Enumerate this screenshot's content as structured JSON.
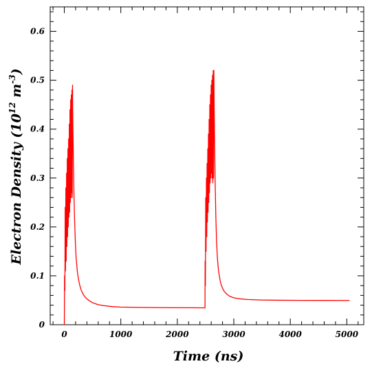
{
  "chart_data": {
    "type": "line",
    "title": "",
    "xlabel": "Time (ns)",
    "ylabel": {
      "prefix": "Electron Density (10",
      "exp1": "12",
      "mid": " m",
      "exp2": "-3",
      "suffix": ")"
    },
    "xlim": [
      -250,
      5300
    ],
    "ylim": [
      0,
      0.65
    ],
    "xticks": [
      {
        "value": 0,
        "label": "0"
      },
      {
        "value": 1000,
        "label": "1000"
      },
      {
        "value": 2000,
        "label": "2000"
      },
      {
        "value": 3000,
        "label": "3000"
      },
      {
        "value": 4000,
        "label": "4000"
      },
      {
        "value": 5000,
        "label": "5000"
      }
    ],
    "yticks": [
      {
        "value": 0,
        "label": "0"
      },
      {
        "value": 0.1,
        "label": "0.1"
      },
      {
        "value": 0.2,
        "label": "0.2"
      },
      {
        "value": 0.3,
        "label": "0.3"
      },
      {
        "value": 0.4,
        "label": "0.4"
      },
      {
        "value": 0.5,
        "label": "0.5"
      },
      {
        "value": 0.6,
        "label": "0.6"
      }
    ],
    "grid": false,
    "series": [
      {
        "color": "#ff0000",
        "points": [
          [
            0,
            0.0
          ],
          [
            5,
            0.1
          ],
          [
            10,
            0.07
          ],
          [
            15,
            0.24
          ],
          [
            20,
            0.11
          ],
          [
            27,
            0.28
          ],
          [
            33,
            0.13
          ],
          [
            40,
            0.31
          ],
          [
            45,
            0.16
          ],
          [
            52,
            0.34
          ],
          [
            58,
            0.18
          ],
          [
            64,
            0.36
          ],
          [
            70,
            0.2
          ],
          [
            76,
            0.38
          ],
          [
            82,
            0.22
          ],
          [
            88,
            0.41
          ],
          [
            94,
            0.23
          ],
          [
            100,
            0.44
          ],
          [
            106,
            0.25
          ],
          [
            112,
            0.46
          ],
          [
            118,
            0.26
          ],
          [
            124,
            0.47
          ],
          [
            130,
            0.27
          ],
          [
            135,
            0.48
          ],
          [
            140,
            0.26
          ],
          [
            145,
            0.49
          ],
          [
            150,
            0.42
          ],
          [
            160,
            0.34
          ],
          [
            170,
            0.27
          ],
          [
            180,
            0.22
          ],
          [
            195,
            0.17
          ],
          [
            210,
            0.135
          ],
          [
            230,
            0.11
          ],
          [
            250,
            0.093
          ],
          [
            275,
            0.08
          ],
          [
            300,
            0.07
          ],
          [
            340,
            0.061
          ],
          [
            380,
            0.055
          ],
          [
            430,
            0.05
          ],
          [
            500,
            0.045
          ],
          [
            600,
            0.041
          ],
          [
            700,
            0.039
          ],
          [
            850,
            0.037
          ],
          [
            1000,
            0.036
          ],
          [
            1300,
            0.0355
          ],
          [
            1700,
            0.035
          ],
          [
            2100,
            0.0348
          ],
          [
            2480,
            0.0345
          ],
          [
            2490,
            0.0345
          ],
          [
            2492,
            0.13
          ],
          [
            2497,
            0.08
          ],
          [
            2503,
            0.26
          ],
          [
            2509,
            0.15
          ],
          [
            2515,
            0.3
          ],
          [
            2521,
            0.18
          ],
          [
            2527,
            0.33
          ],
          [
            2533,
            0.21
          ],
          [
            2539,
            0.36
          ],
          [
            2545,
            0.23
          ],
          [
            2551,
            0.39
          ],
          [
            2557,
            0.25
          ],
          [
            2563,
            0.42
          ],
          [
            2569,
            0.27
          ],
          [
            2575,
            0.45
          ],
          [
            2581,
            0.29
          ],
          [
            2587,
            0.47
          ],
          [
            2593,
            0.3
          ],
          [
            2599,
            0.49
          ],
          [
            2605,
            0.31
          ],
          [
            2611,
            0.5
          ],
          [
            2617,
            0.3
          ],
          [
            2623,
            0.51
          ],
          [
            2629,
            0.29
          ],
          [
            2635,
            0.52
          ],
          [
            2641,
            0.3
          ],
          [
            2647,
            0.52
          ],
          [
            2652,
            0.45
          ],
          [
            2660,
            0.37
          ],
          [
            2670,
            0.29
          ],
          [
            2682,
            0.22
          ],
          [
            2695,
            0.17
          ],
          [
            2710,
            0.135
          ],
          [
            2730,
            0.11
          ],
          [
            2755,
            0.092
          ],
          [
            2780,
            0.08
          ],
          [
            2820,
            0.07
          ],
          [
            2870,
            0.063
          ],
          [
            2930,
            0.058
          ],
          [
            3000,
            0.055
          ],
          [
            3100,
            0.053
          ],
          [
            3250,
            0.0515
          ],
          [
            3500,
            0.0505
          ],
          [
            3800,
            0.05
          ],
          [
            4200,
            0.0498
          ],
          [
            4600,
            0.0497
          ],
          [
            5050,
            0.0496
          ]
        ]
      }
    ]
  }
}
